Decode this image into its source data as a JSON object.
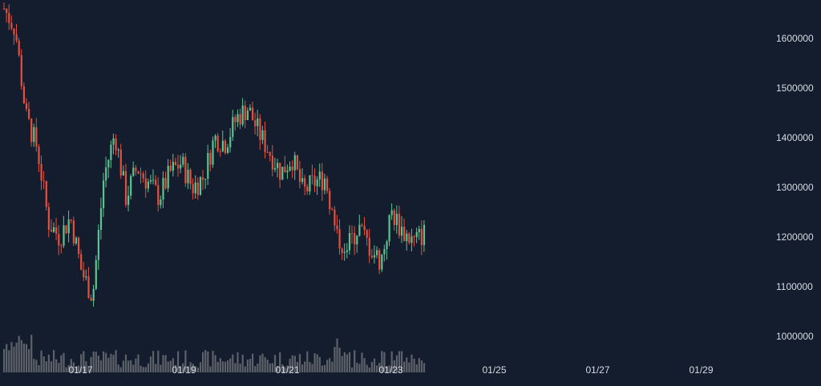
{
  "chart_data": {
    "type": "candlestick",
    "colors": {
      "up": "#5ec391",
      "down": "#e3503e",
      "volume": "#6b6f75",
      "background": "#131d2d",
      "text": "#d6dbe2"
    },
    "x_ticks": [
      "01/17",
      "01/19",
      "01/21",
      "01/23",
      "01/25",
      "01/27",
      "01/29"
    ],
    "x_range": [
      "01/16",
      "01/30"
    ],
    "y_ticks": [
      1000000,
      1100000,
      1200000,
      1300000,
      1400000,
      1500000,
      1600000
    ],
    "ylim": [
      950000,
      1700000
    ],
    "series": [
      {
        "x": "01/16",
        "value": 1660000
      },
      {
        "x": "01/16",
        "value": 1620000
      },
      {
        "x": "01/17",
        "value": 1440000
      },
      {
        "x": "01/17",
        "value": 1380000
      },
      {
        "x": "01/17",
        "value": 1230000
      },
      {
        "x": "01/17",
        "value": 1200000
      },
      {
        "x": "01/18",
        "value": 1240000
      },
      {
        "x": "01/18",
        "value": 1130000
      },
      {
        "x": "01/18",
        "value": 1080000
      },
      {
        "x": "01/18",
        "value": 1320000
      },
      {
        "x": "01/18",
        "value": 1410000
      },
      {
        "x": "01/19",
        "value": 1280000
      },
      {
        "x": "01/19",
        "value": 1340000
      },
      {
        "x": "01/19",
        "value": 1310000
      },
      {
        "x": "01/19",
        "value": 1280000
      },
      {
        "x": "01/20",
        "value": 1330000
      },
      {
        "x": "01/20",
        "value": 1350000
      },
      {
        "x": "01/20",
        "value": 1300000
      },
      {
        "x": "01/20",
        "value": 1320000
      },
      {
        "x": "01/20",
        "value": 1400000
      },
      {
        "x": "01/21",
        "value": 1390000
      },
      {
        "x": "01/21",
        "value": 1440000
      },
      {
        "x": "01/21",
        "value": 1460000
      },
      {
        "x": "01/21",
        "value": 1410000
      },
      {
        "x": "01/21",
        "value": 1370000
      },
      {
        "x": "01/22",
        "value": 1330000
      },
      {
        "x": "01/22",
        "value": 1360000
      },
      {
        "x": "01/22",
        "value": 1290000
      },
      {
        "x": "01/22",
        "value": 1310000
      },
      {
        "x": "01/22",
        "value": 1320000
      },
      {
        "x": "01/23",
        "value": 1200000
      },
      {
        "x": "01/23",
        "value": 1180000
      },
      {
        "x": "01/23",
        "value": 1220000
      },
      {
        "x": "01/23",
        "value": 1180000
      },
      {
        "x": "01/23",
        "value": 1150000
      },
      {
        "x": "01/24",
        "value": 1250000
      },
      {
        "x": "01/24",
        "value": 1210000
      },
      {
        "x": "01/24",
        "value": 1190000
      },
      {
        "x": "01/24",
        "value": 1210000
      }
    ]
  }
}
